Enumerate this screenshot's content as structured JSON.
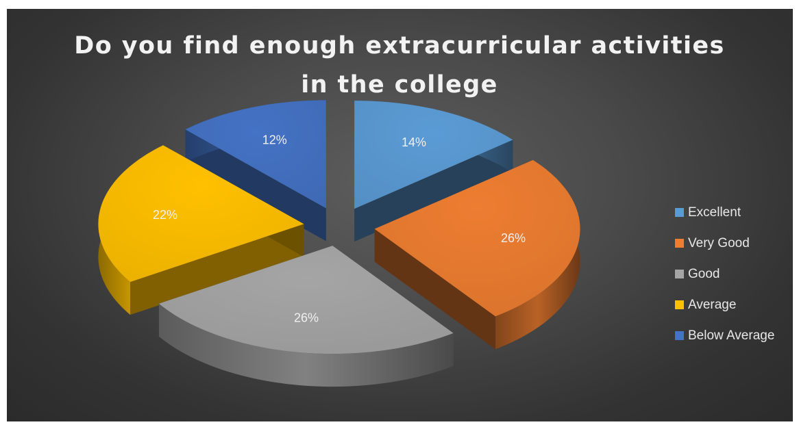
{
  "title_lines": [
    "Do you find enough extracurricular activities",
    "in the college"
  ],
  "chart_data": {
    "type": "pie",
    "title": "Do you find enough extracurricular activities in the college",
    "three_d": true,
    "exploded": true,
    "legend_position": "right",
    "categories": [
      "Excellent",
      "Very Good",
      "Good",
      "Average",
      "Below Average"
    ],
    "values": [
      14,
      26,
      26,
      22,
      12
    ],
    "data_labels": [
      "14%",
      "26%",
      "26%",
      "22%",
      "12%"
    ],
    "colors": [
      "#5b9bd5",
      "#ed7d31",
      "#a5a5a5",
      "#ffc000",
      "#4472c4"
    ]
  }
}
